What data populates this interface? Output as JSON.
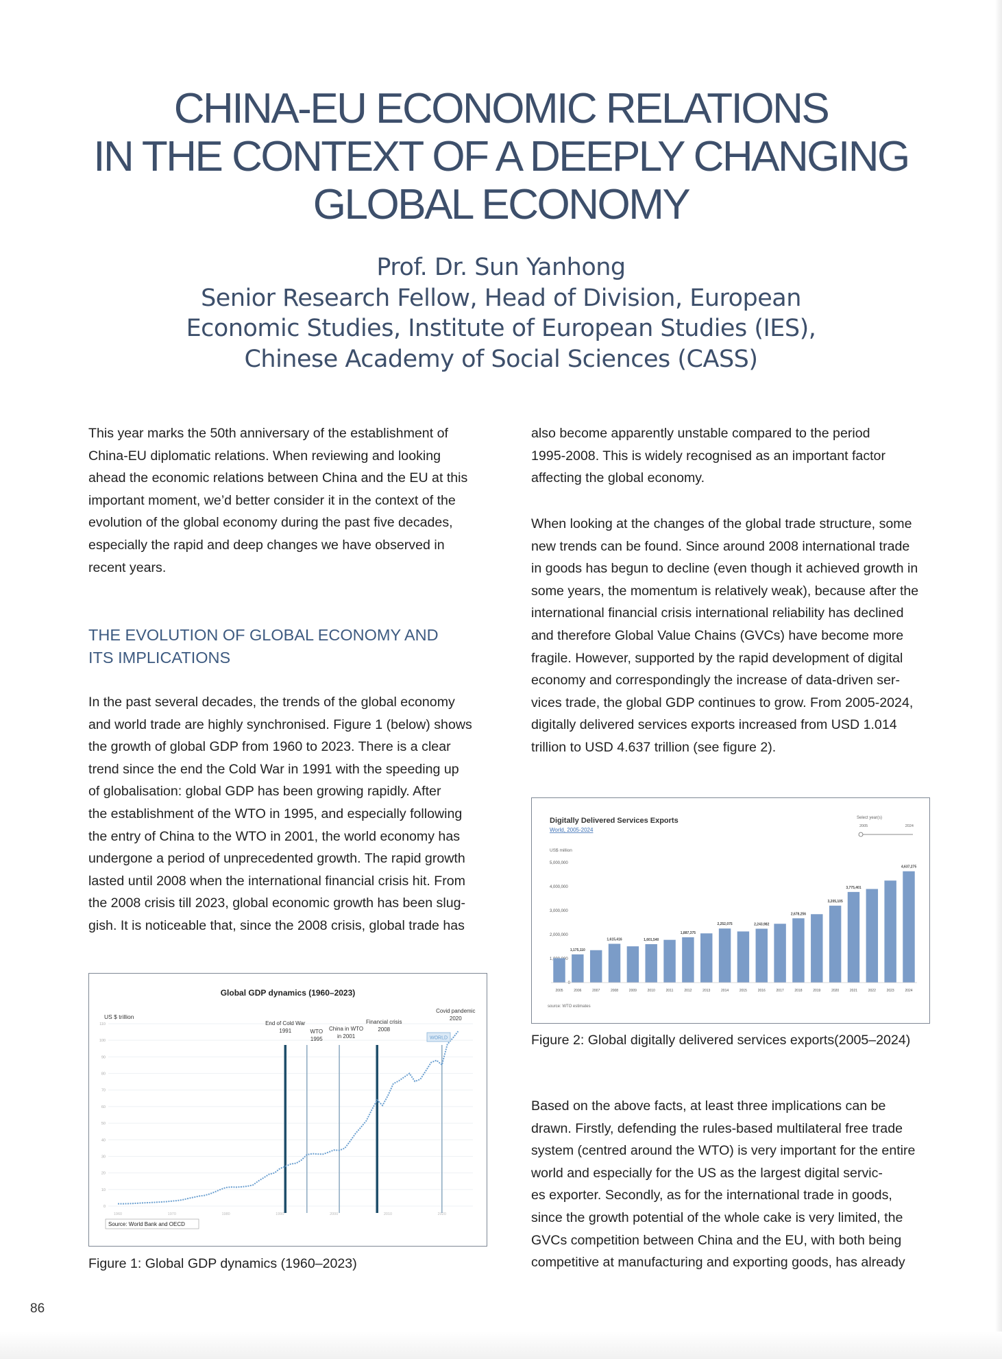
{
  "header": {
    "title": [
      "CHINA-EU ECONOMIC RELATIONS",
      "IN THE CONTEXT OF A DEEPLY CHANGING",
      "GLOBAL ECONOMY"
    ],
    "author": [
      "Prof. Dr. Sun Yanhong",
      "Senior Research Fellow, Head of Division, European",
      "Economic Studies, Institute of European Studies (IES),",
      "Chinese Academy of Social Sciences (CASS)"
    ]
  },
  "body": {
    "left": {
      "intro": [
        "This year marks the 50th anniversary of the establishment of",
        "China-EU diplomatic relations. When reviewing and looking",
        "ahead the economic relations between China and the EU at this",
        "important moment, we’d better consider it in the context of the",
        "evolution of the global economy during the past five decades,",
        "especially the rapid and deep changes we have observed in",
        "recent years."
      ],
      "heading": [
        "THE EVOLUTION OF GLOBAL ECONOMY AND",
        "ITS IMPLICATIONS"
      ],
      "text": [
        "In the past several decades, the trends of the global economy",
        "and world trade are highly synchronised. Figure 1 (below) shows",
        "the growth of global GDP from 1960 to 2023. There is a clear",
        "trend since the end the Cold War in 1991 with the speeding up",
        "of globalisation: global GDP has been growing rapidly. After",
        "the establishment of the WTO in 1995, and especially following",
        "the entry of China to the WTO in 2001, the world economy has",
        "undergone a period of unprecedented growth. The rapid growth",
        "lasted until 2008 when the international financial crisis hit. From",
        "the 2008 crisis till 2023, global economic growth has been slug-",
        "gish. It is noticeable that, since the 2008 crisis, global trade has"
      ]
    },
    "right": {
      "p1": [
        "also become apparently unstable compared to the period",
        "1995-2008. This is widely recognised as an important factor",
        "affecting the global economy."
      ],
      "p2": [
        "When looking at the changes of the global trade structure, some",
        "new trends can be found. Since around 2008 international trade",
        "in goods has begun to decline (even though it achieved growth in",
        "some years, the momentum is relatively weak), because after the",
        "international financial crisis international reliability has declined",
        "and therefore Global Value Chains (GVCs) have become more",
        "fragile. However, supported by the rapid development of digital",
        "economy and correspondingly the increase of data-driven ser-",
        "vices trade, the global GDP continues to grow. From 2005-2024,",
        "digitally delivered services exports increased from USD 1.014",
        "trillion to USD 4.637 trillion (see figure 2)."
      ],
      "p3": [
        "Based on the above facts, at least three implications can be",
        "drawn. Firstly, defending the rules-based multilateral free trade",
        "system (centred around the WTO) is very important for the entire",
        "world and especially for the US as the largest digital servic-",
        "es exporter. Secondly, as for the international trade in goods,",
        "since the growth potential of the whole cake is very limited, the",
        "GVCs competition between China and the EU, with both being",
        "competitive at manufacturing and exporting goods, has already"
      ]
    }
  },
  "figures": {
    "captions": [
      "Figure 1: Global GDP dynamics (1960–2023)",
      "Figure 2: Global digitally delivered services exports(2005–2024)"
    ]
  },
  "chart_data": [
    {
      "type": "line",
      "title": "Global GDP dynamics (1960–2023)",
      "y_label": "US $ trillion",
      "source": "Source: World Bank and OECD",
      "x": [
        1960,
        1961,
        1962,
        1963,
        1964,
        1965,
        1966,
        1967,
        1968,
        1969,
        1970,
        1971,
        1972,
        1973,
        1974,
        1975,
        1976,
        1977,
        1978,
        1979,
        1980,
        1981,
        1982,
        1983,
        1984,
        1985,
        1986,
        1987,
        1988,
        1989,
        1990,
        1991,
        1992,
        1993,
        1994,
        1995,
        1996,
        1997,
        1998,
        1999,
        2000,
        2001,
        2002,
        2003,
        2004,
        2005,
        2006,
        2007,
        2008,
        2009,
        2010,
        2011,
        2012,
        2013,
        2014,
        2015,
        2016,
        2017,
        2018,
        2019,
        2020,
        2021,
        2022,
        2023
      ],
      "series": [
        {
          "name": "WORLD",
          "color": "#6a9fd0",
          "values": [
            1.4,
            1.4,
            1.5,
            1.6,
            1.8,
            2.0,
            2.1,
            2.3,
            2.5,
            2.7,
            3.0,
            3.3,
            3.8,
            4.6,
            5.3,
            6.0,
            6.4,
            7.3,
            8.6,
            10.0,
            11.2,
            11.5,
            11.4,
            11.6,
            12.0,
            12.7,
            15.1,
            17.1,
            19.2,
            20.0,
            22.6,
            23.9,
            25.4,
            25.8,
            27.8,
            31.0,
            31.6,
            31.4,
            31.3,
            32.5,
            33.8,
            33.6,
            34.9,
            39.1,
            43.8,
            47.5,
            51.5,
            58.0,
            64.0,
            60.7,
            66.6,
            73.8,
            75.5,
            77.8,
            80.0,
            75.2,
            76.5,
            81.5,
            86.6,
            87.9,
            85.2,
            97.5,
            101.3,
            105.4
          ]
        }
      ],
      "xlim": [
        1960,
        2025
      ],
      "ylim": [
        0,
        110
      ],
      "xticks": [
        1960,
        1970,
        1980,
        1990,
        2000,
        2010,
        2020
      ],
      "yticks": [
        0,
        10,
        20,
        30,
        40,
        50,
        60,
        70,
        80,
        90,
        100,
        110
      ],
      "grid": true,
      "annotations": [
        {
          "x": 1991,
          "text": [
            "End of Cold War",
            "1991"
          ],
          "color": "#1f4e6b"
        },
        {
          "x": 1995,
          "text": [
            "WTO",
            "1995"
          ],
          "color": "#8aa8c0"
        },
        {
          "x": 2001,
          "text": [
            "China in WTO",
            "in 2001"
          ],
          "color": "#8aa8c0"
        },
        {
          "x": 2008,
          "text": [
            "Financial crisis",
            "2008"
          ],
          "color": "#1f4e6b"
        },
        {
          "x": 2020,
          "text": [
            "Covid pandemic",
            "2020"
          ],
          "color": "#8aa8c0"
        }
      ]
    },
    {
      "type": "bar",
      "title": "Digitally Delivered Services Exports",
      "subtitle": "World, 2005-2024",
      "y_label": "US$ million",
      "source": "source: WTO estimates",
      "selector": {
        "label": "Select year(s)",
        "from": "2005",
        "to": "2024"
      },
      "color": "#7b9cc8",
      "categories": [
        "2005",
        "2006",
        "2007",
        "2008",
        "2009",
        "2010",
        "2011",
        "2012",
        "2013",
        "2014",
        "2015",
        "2016",
        "2017",
        "2018",
        "2019",
        "2020",
        "2021",
        "2022",
        "2023",
        "2024"
      ],
      "values": [
        1014000,
        1175110,
        1350000,
        1615416,
        1510000,
        1601540,
        1780000,
        1887375,
        2050000,
        2252075,
        2130000,
        2243982,
        2450000,
        2678256,
        2850000,
        3205105,
        3775401,
        3900000,
        4250000,
        4637275
      ],
      "value_labels": [
        null,
        "1,175,110",
        null,
        "1,615,416",
        null,
        "1,601,540",
        null,
        "1,887,375",
        null,
        "2,252,075",
        null,
        "2,243,982",
        null,
        "2,678,256",
        null,
        "3,205,105",
        "3,775,401",
        null,
        null,
        "4,637,275"
      ],
      "ylim": [
        0,
        5000000
      ],
      "yticks": [
        0,
        {
          "value": 1000000,
          "label": "1,000,000"
        },
        {
          "value": 2000000,
          "label": "2,000,000"
        },
        {
          "value": 3000000,
          "label": "3,000,000"
        },
        {
          "value": 4000000,
          "label": "4,000,000"
        },
        {
          "value": 5000000,
          "label": "5,000,000"
        }
      ],
      "grid": false
    }
  ],
  "page_number": "86"
}
